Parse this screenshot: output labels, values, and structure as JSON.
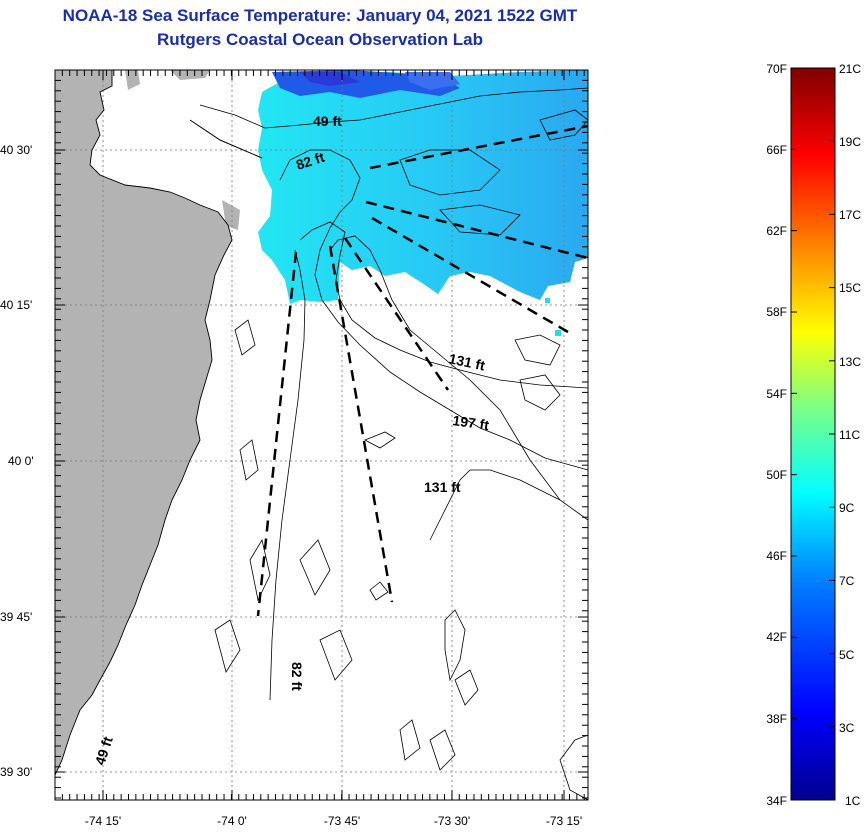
{
  "header": {
    "title": "NOAA-18 Sea Surface Temperature:  January 04, 2021 1522 GMT",
    "subtitle": "Rutgers Coastal Ocean Observation Lab"
  },
  "map": {
    "lat_labels": [
      "40 30'",
      "40 15'",
      "40 0'",
      "39 45'",
      "39 30'"
    ],
    "lon_labels": [
      "-74 15'",
      "-74 0'",
      "-73 45'",
      "-73 30'",
      "-73 15'"
    ],
    "depth_labels": [
      "49 ft",
      "82 ft",
      "131 ft",
      "197 ft",
      "131 ft",
      "82 ft",
      "49 ft"
    ],
    "land_color": "#b3b3b3",
    "ocean_color": "#ffffff"
  },
  "colorbar": {
    "f_labels": [
      "70F",
      "66F",
      "62F",
      "58F",
      "54F",
      "50F",
      "46F",
      "42F",
      "38F",
      "34F"
    ],
    "c_labels": [
      "21C",
      "19C",
      "17C",
      "15C",
      "13C",
      "11C",
      "9C",
      "7C",
      "5C",
      "3C",
      "1C"
    ],
    "colors": [
      "#00008f",
      "#0000ff",
      "#0080ff",
      "#00ffff",
      "#80ff80",
      "#ffff00",
      "#ff8000",
      "#ff0000",
      "#800000"
    ]
  }
}
